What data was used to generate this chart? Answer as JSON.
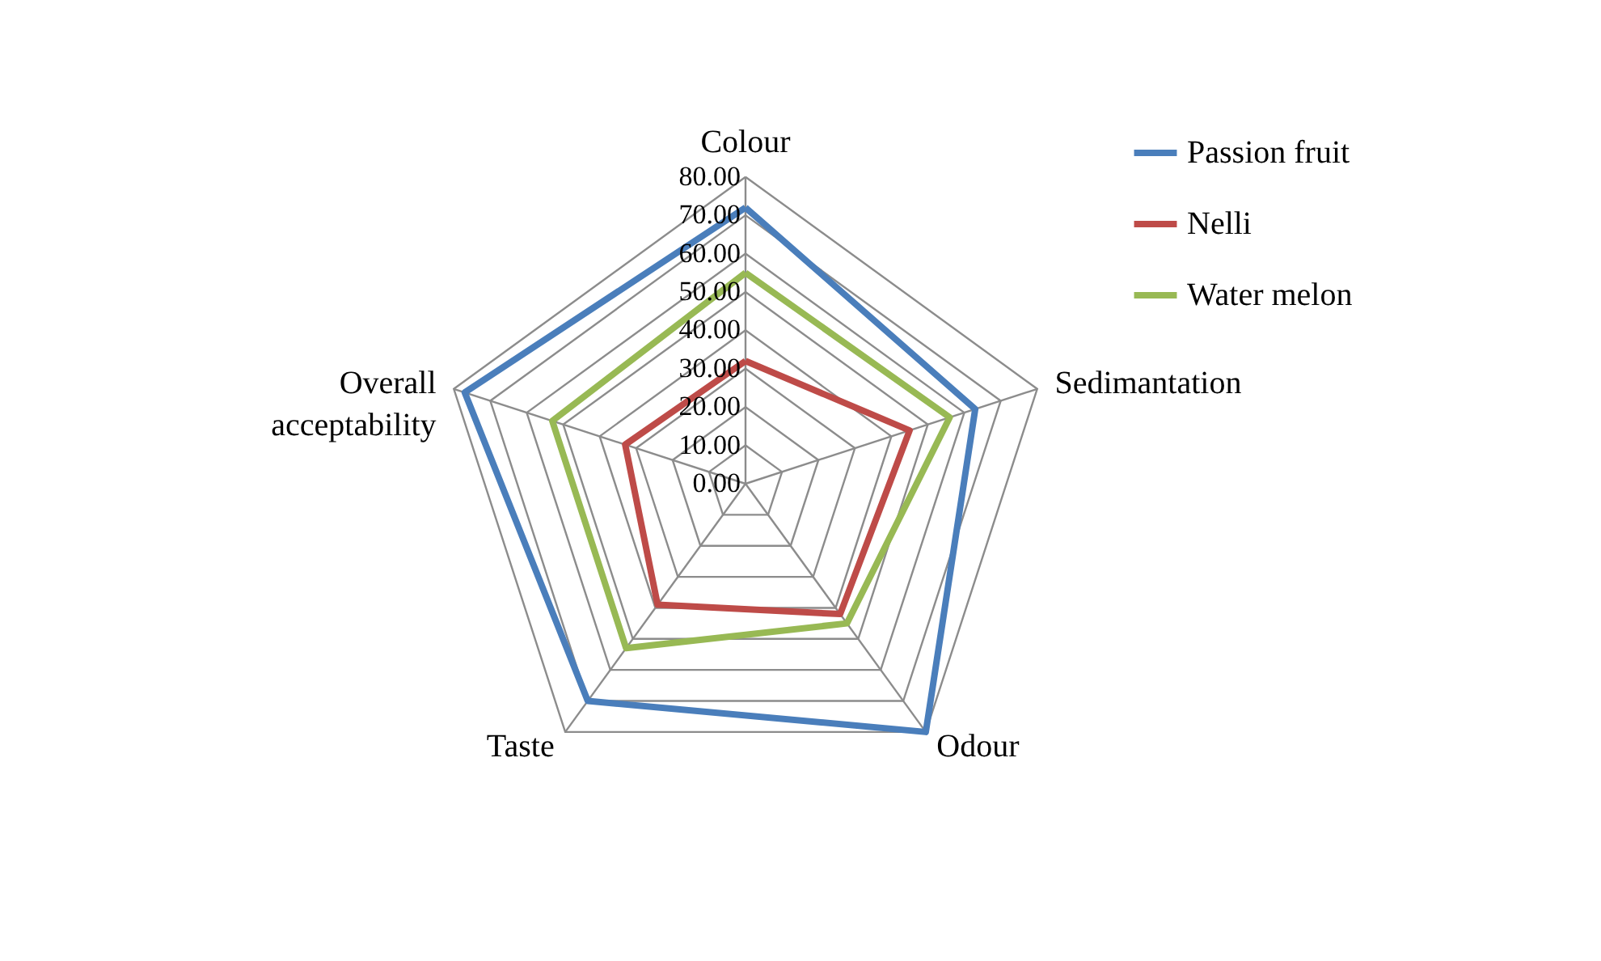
{
  "chart_data": {
    "type": "radar",
    "categories": [
      "Colour",
      "Sedimantation",
      "Odour",
      "Taste",
      "Overall acceptability"
    ],
    "series": [
      {
        "name": "Passion fruit",
        "color": "#4a7ebb",
        "values": [
          72,
          63,
          80,
          70,
          77
        ]
      },
      {
        "name": "Nelli",
        "color": "#be4b48",
        "values": [
          32,
          45,
          42,
          39,
          33
        ]
      },
      {
        "name": "Water melon",
        "color": "#98b954",
        "values": [
          55,
          56,
          45,
          53,
          53
        ]
      }
    ],
    "ylim": [
      0,
      80
    ],
    "yticks": [
      {
        "value": 0,
        "label": "0.00"
      },
      {
        "value": 10,
        "label": "10.00"
      },
      {
        "value": 20,
        "label": "20.00"
      },
      {
        "value": 30,
        "label": "30.00"
      },
      {
        "value": 40,
        "label": "40.00"
      },
      {
        "value": 50,
        "label": "50.00"
      },
      {
        "value": 60,
        "label": "60.00"
      },
      {
        "value": 70,
        "label": "70.00"
      },
      {
        "value": 80,
        "label": "80.00"
      }
    ],
    "grid": true,
    "legend": "right"
  }
}
